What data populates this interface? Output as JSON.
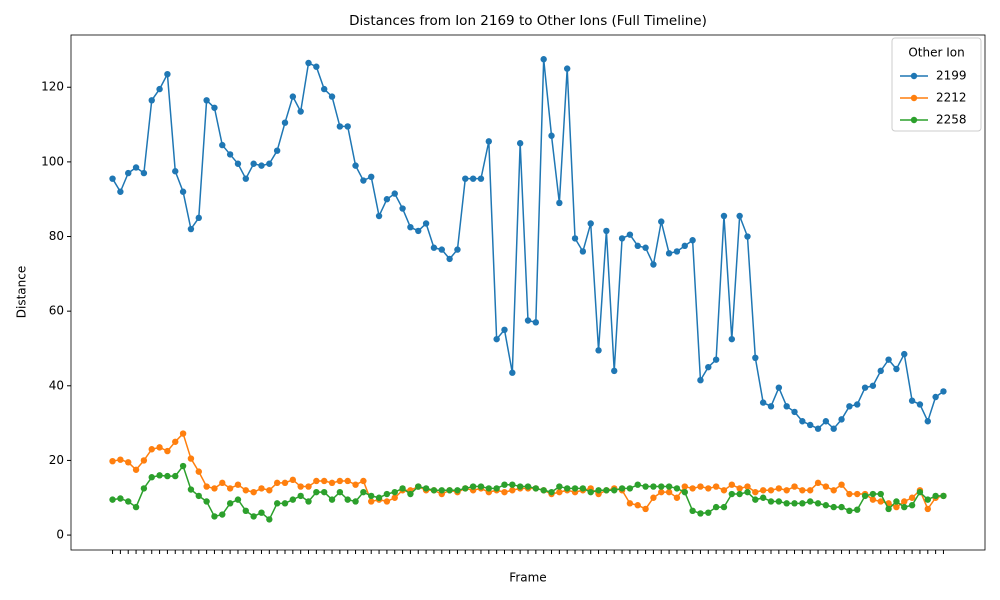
{
  "chart_data": {
    "type": "line",
    "title": "Distances from Ion 2169 to Other Ions (Full Timeline)",
    "x_label": "Frame",
    "y_label": "Distance",
    "legend_title": "Other Ion",
    "legend": "upper right",
    "categories": [
      null,
      null,
      null,
      null,
      null,
      null,
      null,
      null,
      null,
      null,
      null,
      null,
      null,
      null,
      null,
      null,
      null,
      null,
      null,
      null,
      null,
      null,
      null,
      null,
      null,
      null,
      null,
      null,
      null,
      null,
      null,
      null,
      null,
      null,
      null,
      null,
      null,
      null,
      null,
      null,
      null,
      null,
      null,
      null,
      null,
      null,
      null,
      null,
      null,
      null,
      null,
      null,
      null,
      null,
      null,
      null,
      null,
      null,
      null,
      null,
      null,
      null,
      null,
      null,
      null,
      null,
      null,
      null,
      null,
      null,
      null,
      null,
      null,
      null,
      null,
      null,
      null,
      null,
      null,
      null,
      null,
      null,
      null,
      null,
      null,
      null,
      null,
      null,
      null,
      null,
      null,
      null,
      null,
      null,
      null,
      null,
      null,
      null,
      null,
      null,
      null,
      null,
      null,
      null,
      null,
      null,
      null
    ],
    "ylim": [
      -4,
      134
    ],
    "yticks": [
      0,
      20,
      40,
      60,
      80,
      100,
      120
    ],
    "series": [
      {
        "name": "2199",
        "color": "#1f77b4",
        "values": [
          95.5,
          92,
          97,
          98.5,
          97,
          116.5,
          119.5,
          123.5,
          97.5,
          92,
          82,
          85,
          116.5,
          114.5,
          104.5,
          102,
          99.5,
          95.5,
          99.5,
          99,
          99.5,
          103,
          110.5,
          117.5,
          113.5,
          126.5,
          125.5,
          119.5,
          117.5,
          109.5,
          109.5,
          99,
          95,
          96,
          85.5,
          90,
          91.5,
          87.5,
          82.5,
          81.5,
          83.5,
          77,
          76.5,
          74,
          76.5,
          95.5,
          95.5,
          95.5,
          105.5,
          52.5,
          55,
          43.5,
          105,
          57.5,
          57,
          127.5,
          107,
          89,
          125,
          79.5,
          76,
          83.5,
          49.5,
          81.5,
          44,
          79.5,
          80.5,
          77.5,
          77,
          72.5,
          84,
          75.5,
          76,
          77.5,
          79,
          41.5,
          45,
          47,
          85.5,
          52.5,
          85.5,
          80,
          47.5,
          35.5,
          34.5,
          39.5,
          34.5,
          33,
          30.5,
          29.5,
          28.5,
          30.5,
          28.5,
          31,
          34.5,
          35,
          39.5,
          40,
          44,
          47,
          44.5,
          48.5,
          36,
          35,
          30.5,
          37,
          38.5
        ]
      },
      {
        "name": "2212",
        "color": "#ff7f0e",
        "values": [
          19.8,
          20.2,
          19.5,
          17.5,
          20,
          23,
          23.5,
          22.5,
          25,
          27.2,
          20.5,
          17,
          13,
          12.5,
          14,
          12.5,
          13.5,
          12,
          11.5,
          12.5,
          12,
          14,
          14,
          14.8,
          13,
          13,
          14.5,
          14.5,
          14,
          14.5,
          14.5,
          13.5,
          14.5,
          9,
          9.5,
          9,
          10,
          12,
          12,
          13,
          12,
          12,
          11,
          12,
          11.5,
          12.5,
          12,
          12.5,
          11.5,
          12,
          11.5,
          12,
          12.5,
          12.5,
          12.5,
          12,
          11,
          11.5,
          12,
          11.5,
          12,
          12.5,
          11,
          12,
          12.5,
          12,
          8.5,
          8,
          7,
          10,
          11.5,
          11.5,
          10,
          13,
          12.5,
          13,
          12.5,
          13,
          12,
          13.5,
          12.5,
          13,
          11.5,
          12,
          12,
          12.5,
          12,
          13,
          12,
          12,
          14,
          13,
          12,
          13.5,
          11,
          11,
          11,
          9.5,
          9,
          8.5,
          7.5,
          9,
          10,
          12,
          7,
          10,
          10.5
        ]
      },
      {
        "name": "2258",
        "color": "#2ca02c",
        "values": [
          9.5,
          9.8,
          9,
          7.5,
          12.5,
          15.5,
          16,
          15.8,
          15.8,
          18.5,
          12.2,
          10.5,
          9,
          5,
          5.5,
          8.5,
          9.5,
          6.5,
          5,
          6,
          4.2,
          8.5,
          8.5,
          9.5,
          10.5,
          9,
          11.5,
          11.5,
          9.5,
          11.5,
          9.5,
          9,
          11.5,
          10.5,
          10,
          11,
          11.5,
          12.5,
          11,
          13,
          12.5,
          12,
          12,
          12,
          12,
          12.5,
          13,
          13,
          12.5,
          12.5,
          13.5,
          13.5,
          13,
          13,
          12.5,
          12,
          11.5,
          13,
          12.5,
          12.5,
          12.5,
          11.5,
          12,
          12,
          12,
          12.5,
          12.5,
          13.5,
          13,
          13,
          13,
          13,
          12.5,
          11.5,
          6.5,
          5.8,
          6,
          7.5,
          7.5,
          11,
          11,
          11.5,
          9.5,
          10,
          9,
          9,
          8.5,
          8.5,
          8.5,
          9,
          8.5,
          8,
          7.5,
          7.5,
          6.5,
          6.8,
          10.5,
          11,
          11,
          7,
          9,
          7.5,
          8,
          11.5,
          9.5,
          10.5,
          10.5
        ]
      }
    ]
  }
}
